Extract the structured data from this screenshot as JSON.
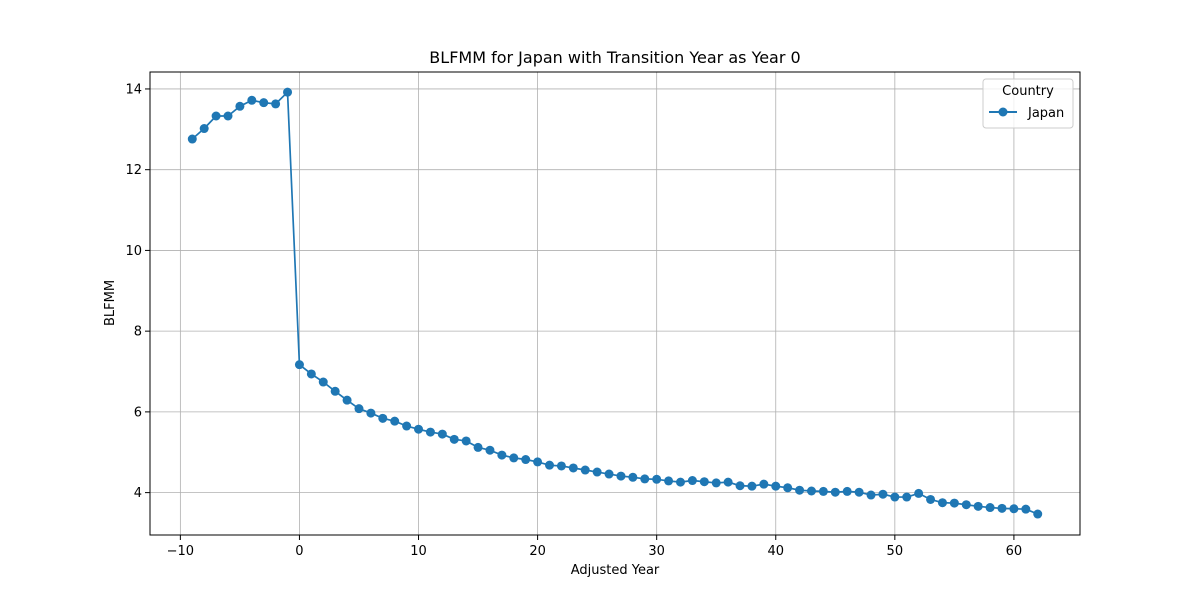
{
  "chart_data": {
    "type": "line",
    "title": "BLFMM for Japan with Transition Year as Year 0",
    "xlabel": "Adjusted Year",
    "ylabel": "BLFMM",
    "xlim": [
      -12.55,
      65.55
    ],
    "ylim": [
      2.95,
      14.42
    ],
    "x_ticks": [
      -10,
      0,
      10,
      20,
      30,
      40,
      50,
      60
    ],
    "y_ticks": [
      4,
      6,
      8,
      10,
      12,
      14
    ],
    "x_tick_labels": [
      "−10",
      "0",
      "10",
      "20",
      "30",
      "40",
      "50",
      "60"
    ],
    "y_tick_labels": [
      "4",
      "6",
      "8",
      "10",
      "12",
      "14"
    ],
    "grid": true,
    "legend": {
      "title": "Country",
      "placement": "top-right"
    },
    "series_color": "#1f77b4",
    "series": [
      {
        "name": "Japan",
        "x": [
          -9,
          -8,
          -7,
          -6,
          -5,
          -4,
          -3,
          -2,
          -1,
          0,
          1,
          2,
          3,
          4,
          5,
          6,
          7,
          8,
          9,
          10,
          11,
          12,
          13,
          14,
          15,
          16,
          17,
          18,
          19,
          20,
          21,
          22,
          23,
          24,
          25,
          26,
          27,
          28,
          29,
          30,
          31,
          32,
          33,
          34,
          35,
          36,
          37,
          38,
          39,
          40,
          41,
          42,
          43,
          44,
          45,
          46,
          47,
          48,
          49,
          50,
          51,
          52,
          53,
          54,
          55,
          56,
          57,
          58,
          59,
          60,
          61,
          62
        ],
        "y": [
          12.76,
          13.02,
          13.33,
          13.33,
          13.57,
          13.72,
          13.66,
          13.63,
          13.92,
          7.17,
          6.94,
          6.74,
          6.51,
          6.29,
          6.08,
          5.97,
          5.84,
          5.77,
          5.65,
          5.57,
          5.5,
          5.45,
          5.32,
          5.28,
          5.12,
          5.05,
          4.93,
          4.86,
          4.82,
          4.76,
          4.68,
          4.66,
          4.61,
          4.56,
          4.51,
          4.46,
          4.41,
          4.38,
          4.34,
          4.33,
          4.29,
          4.26,
          4.3,
          4.27,
          4.24,
          4.26,
          4.17,
          4.16,
          4.21,
          4.16,
          4.12,
          4.06,
          4.04,
          4.03,
          4.01,
          4.03,
          4.01,
          3.94,
          3.96,
          3.89,
          3.89,
          3.98,
          3.83,
          3.75,
          3.74,
          3.7,
          3.66,
          3.63,
          3.61,
          3.6,
          3.59,
          3.47
        ]
      }
    ]
  }
}
